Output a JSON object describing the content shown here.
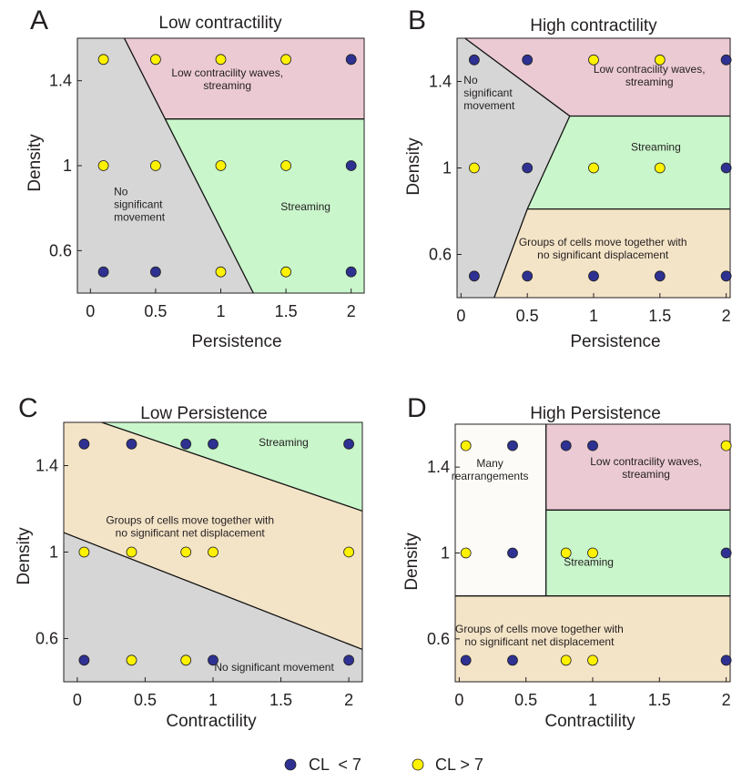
{
  "colors": {
    "cl_below": "#2e3192",
    "cl_above": "#fff200",
    "region_pink": "#ebcad3",
    "region_green": "#c9f6cb",
    "region_gray": "#d6d6d6",
    "region_tan": "#f4e4c7",
    "region_white": "#fcfbf7"
  },
  "legend": {
    "placement": "bottom-center",
    "items": [
      {
        "label": "CL  < 7",
        "class": "below"
      },
      {
        "label": "CL > 7",
        "class": "above"
      }
    ]
  },
  "chart_data": [
    {
      "panel": "A",
      "type": "scatter",
      "title": "Low contractility",
      "xlabel": "Persistence",
      "ylabel": "Density",
      "xlim": [
        -0.1,
        2.1
      ],
      "ylim": [
        0.4,
        1.6
      ],
      "xticks": [
        0,
        0.5,
        1,
        1.5,
        2
      ],
      "xtick_labels": [
        "0",
        "0.5",
        "1",
        "1.5",
        "2"
      ],
      "yticks": [
        0.6,
        1,
        1.4
      ],
      "ytick_labels": [
        "0.6",
        "1",
        "1.4"
      ],
      "regions": [
        {
          "color": "region_gray",
          "label": "No significant movement",
          "label_lines": [
            "No",
            "significant",
            "movement"
          ],
          "label_at": [
            0.18,
            0.86
          ],
          "label_anchor": "start",
          "polygon": [
            [
              -0.1,
              1.6
            ],
            [
              0.26,
              1.6
            ],
            [
              1.25,
              0.4
            ],
            [
              -0.1,
              0.4
            ]
          ]
        },
        {
          "color": "region_pink",
          "label": "Low contracility waves, streaming",
          "label_lines": [
            "Low contracility waves,",
            "streaming"
          ],
          "label_at": [
            1.05,
            1.42
          ],
          "label_anchor": "middle",
          "polygon": [
            [
              0.26,
              1.6
            ],
            [
              2.1,
              1.6
            ],
            [
              2.1,
              1.22
            ],
            [
              0.575,
              1.22
            ]
          ]
        },
        {
          "color": "region_green",
          "label": "Streaming",
          "label_lines": [
            "Streaming"
          ],
          "label_at": [
            1.65,
            0.79
          ],
          "label_anchor": "middle",
          "polygon": [
            [
              0.575,
              1.22
            ],
            [
              2.1,
              1.22
            ],
            [
              2.1,
              0.4
            ],
            [
              1.25,
              0.4
            ]
          ]
        }
      ],
      "boundaries": [
        [
          [
            0.26,
            1.6
          ],
          [
            1.25,
            0.4
          ]
        ],
        [
          [
            0.575,
            1.22
          ],
          [
            2.1,
            1.22
          ]
        ]
      ],
      "points": [
        {
          "x": 0.1,
          "y": 1.5,
          "class": "above"
        },
        {
          "x": 0.5,
          "y": 1.5,
          "class": "above"
        },
        {
          "x": 1,
          "y": 1.5,
          "class": "above"
        },
        {
          "x": 1.5,
          "y": 1.5,
          "class": "above"
        },
        {
          "x": 2,
          "y": 1.5,
          "class": "below"
        },
        {
          "x": 0.1,
          "y": 1.0,
          "class": "above"
        },
        {
          "x": 0.5,
          "y": 1.0,
          "class": "above"
        },
        {
          "x": 1,
          "y": 1.0,
          "class": "above"
        },
        {
          "x": 1.5,
          "y": 1.0,
          "class": "above"
        },
        {
          "x": 2,
          "y": 1.0,
          "class": "below"
        },
        {
          "x": 0.1,
          "y": 0.5,
          "class": "below"
        },
        {
          "x": 0.5,
          "y": 0.5,
          "class": "below"
        },
        {
          "x": 1,
          "y": 0.5,
          "class": "above"
        },
        {
          "x": 1.5,
          "y": 0.5,
          "class": "above"
        },
        {
          "x": 2,
          "y": 0.5,
          "class": "below"
        }
      ]
    },
    {
      "panel": "B",
      "type": "scatter",
      "title": "High contractility",
      "xlabel": "Persistence",
      "ylabel": "Density",
      "xlim": [
        -0.03,
        2.03
      ],
      "ylim": [
        0.4,
        1.6
      ],
      "xticks": [
        0,
        0.5,
        1,
        1.5,
        2
      ],
      "xtick_labels": [
        "0",
        "0.5",
        "1",
        "1.5",
        "2"
      ],
      "yticks": [
        0.6,
        1,
        1.4
      ],
      "ytick_labels": [
        "0.6",
        "1",
        "1.4"
      ],
      "regions": [
        {
          "color": "region_gray",
          "label": "No significant movement",
          "label_lines": [
            "No",
            "significant",
            "movement"
          ],
          "label_at": [
            0.02,
            1.39
          ],
          "label_anchor": "start",
          "polygon": [
            [
              -0.03,
              1.6
            ],
            [
              0.03,
              1.6
            ],
            [
              0.82,
              1.24
            ],
            [
              0.5,
              0.81
            ],
            [
              0.25,
              0.4
            ],
            [
              -0.03,
              0.4
            ]
          ]
        },
        {
          "color": "region_pink",
          "label": "Low contracility waves, streaming",
          "label_lines": [
            "Low contracility waves,",
            "streaming"
          ],
          "label_at": [
            1.42,
            1.44
          ],
          "label_anchor": "middle",
          "polygon": [
            [
              0.03,
              1.6
            ],
            [
              2.03,
              1.6
            ],
            [
              2.03,
              1.24
            ],
            [
              0.82,
              1.24
            ]
          ]
        },
        {
          "color": "region_green",
          "label": "Streaming",
          "label_lines": [
            "Streaming"
          ],
          "label_at": [
            1.47,
            1.08
          ],
          "label_anchor": "middle",
          "polygon": [
            [
              0.82,
              1.24
            ],
            [
              2.03,
              1.24
            ],
            [
              2.03,
              0.81
            ],
            [
              0.5,
              0.81
            ]
          ]
        },
        {
          "color": "region_tan",
          "label": "Groups of cells move together with no significant displacement",
          "label_lines": [
            "Groups of cells move together with",
            "no significant displacement"
          ],
          "label_at": [
            1.07,
            0.64
          ],
          "label_anchor": "middle",
          "polygon": [
            [
              0.5,
              0.81
            ],
            [
              2.03,
              0.81
            ],
            [
              2.03,
              0.4
            ],
            [
              0.25,
              0.4
            ]
          ]
        }
      ],
      "boundaries": [
        [
          [
            0.03,
            1.6
          ],
          [
            0.82,
            1.24
          ],
          [
            0.5,
            0.81
          ],
          [
            0.25,
            0.4
          ]
        ],
        [
          [
            0.82,
            1.24
          ],
          [
            2.03,
            1.24
          ]
        ],
        [
          [
            0.5,
            0.81
          ],
          [
            2.03,
            0.81
          ]
        ]
      ],
      "points": [
        {
          "x": 0.1,
          "y": 1.5,
          "class": "below"
        },
        {
          "x": 0.5,
          "y": 1.5,
          "class": "below"
        },
        {
          "x": 1,
          "y": 1.5,
          "class": "above"
        },
        {
          "x": 1.5,
          "y": 1.5,
          "class": "above"
        },
        {
          "x": 2,
          "y": 1.5,
          "class": "below"
        },
        {
          "x": 0.1,
          "y": 1.0,
          "class": "above"
        },
        {
          "x": 0.5,
          "y": 1.0,
          "class": "below"
        },
        {
          "x": 1,
          "y": 1.0,
          "class": "above"
        },
        {
          "x": 1.5,
          "y": 1.0,
          "class": "above"
        },
        {
          "x": 2,
          "y": 1.0,
          "class": "below"
        },
        {
          "x": 0.1,
          "y": 0.5,
          "class": "below"
        },
        {
          "x": 0.5,
          "y": 0.5,
          "class": "below"
        },
        {
          "x": 1,
          "y": 0.5,
          "class": "below"
        },
        {
          "x": 1.5,
          "y": 0.5,
          "class": "below"
        },
        {
          "x": 2,
          "y": 0.5,
          "class": "below"
        }
      ]
    },
    {
      "panel": "C",
      "type": "scatter",
      "title": "Low Persistence",
      "xlabel": "Contractility",
      "ylabel": "Density",
      "xlim": [
        -0.1,
        2.1
      ],
      "ylim": [
        0.4,
        1.6
      ],
      "xticks": [
        0,
        0.5,
        1,
        1.5,
        2
      ],
      "xtick_labels": [
        "0",
        "0.5",
        "1",
        "1.5",
        "2"
      ],
      "yticks": [
        0.6,
        1,
        1.4
      ],
      "ytick_labels": [
        "0.6",
        "1",
        "1.4"
      ],
      "regions": [
        {
          "color": "region_tan",
          "label": "Groups of cells move together with no significant net displacement",
          "label_lines": [
            "Groups of cells move together with",
            "no significant net displacement"
          ],
          "label_at": [
            0.83,
            1.13
          ],
          "label_anchor": "middle",
          "polygon": [
            [
              -0.1,
              1.6
            ],
            [
              0.18,
              1.6
            ],
            [
              2.1,
              1.19
            ],
            [
              2.1,
              0.55
            ],
            [
              -0.1,
              1.09
            ]
          ]
        },
        {
          "color": "region_green",
          "label": "Streaming",
          "label_lines": [
            "Streaming"
          ],
          "label_at": [
            1.52,
            1.49
          ],
          "label_anchor": "middle",
          "polygon": [
            [
              0.18,
              1.6
            ],
            [
              2.1,
              1.6
            ],
            [
              2.1,
              1.19
            ]
          ]
        },
        {
          "color": "region_gray",
          "label": "No significant movement",
          "label_lines": [
            "No significant movement"
          ],
          "label_at": [
            1.45,
            0.45
          ],
          "label_anchor": "middle",
          "polygon": [
            [
              -0.1,
              1.09
            ],
            [
              2.1,
              0.55
            ],
            [
              2.1,
              0.4
            ],
            [
              -0.1,
              0.4
            ]
          ]
        }
      ],
      "boundaries": [
        [
          [
            0.18,
            1.6
          ],
          [
            2.1,
            1.19
          ]
        ],
        [
          [
            -0.1,
            1.09
          ],
          [
            2.1,
            0.55
          ]
        ]
      ],
      "points": [
        {
          "x": 0.05,
          "y": 1.5,
          "class": "below"
        },
        {
          "x": 0.4,
          "y": 1.5,
          "class": "below"
        },
        {
          "x": 0.8,
          "y": 1.5,
          "class": "below"
        },
        {
          "x": 1,
          "y": 1.5,
          "class": "below"
        },
        {
          "x": 2,
          "y": 1.5,
          "class": "below"
        },
        {
          "x": 0.05,
          "y": 1.0,
          "class": "above"
        },
        {
          "x": 0.4,
          "y": 1.0,
          "class": "above"
        },
        {
          "x": 0.8,
          "y": 1.0,
          "class": "above"
        },
        {
          "x": 1,
          "y": 1.0,
          "class": "above"
        },
        {
          "x": 2,
          "y": 1.0,
          "class": "above"
        },
        {
          "x": 0.05,
          "y": 0.5,
          "class": "below"
        },
        {
          "x": 0.4,
          "y": 0.5,
          "class": "above"
        },
        {
          "x": 0.8,
          "y": 0.5,
          "class": "above"
        },
        {
          "x": 1,
          "y": 0.5,
          "class": "below"
        },
        {
          "x": 2,
          "y": 0.5,
          "class": "below"
        }
      ]
    },
    {
      "panel": "D",
      "type": "scatter",
      "title": "High Persistence",
      "xlabel": "Contractility",
      "ylabel": "Density",
      "xlim": [
        -0.03,
        2.03
      ],
      "ylim": [
        0.4,
        1.6
      ],
      "xticks": [
        0,
        0.5,
        1,
        1.5,
        2
      ],
      "xtick_labels": [
        "0",
        "0.5",
        "1",
        "1.5",
        "2"
      ],
      "yticks": [
        0.6,
        1,
        1.4
      ],
      "ytick_labels": [
        "0.6",
        "1",
        "1.4"
      ],
      "regions": [
        {
          "color": "region_white",
          "label": "Many rearrangements",
          "label_lines": [
            "Many",
            "rearrangements"
          ],
          "label_at": [
            0.23,
            1.4
          ],
          "label_anchor": "middle",
          "polygon": [
            [
              -0.03,
              1.6
            ],
            [
              0.65,
              1.6
            ],
            [
              0.65,
              0.8
            ],
            [
              -0.03,
              0.8
            ]
          ]
        },
        {
          "color": "region_pink",
          "label": "Low contracility waves, streaming",
          "label_lines": [
            "Low contracility waves,",
            "streaming"
          ],
          "label_at": [
            1.4,
            1.41
          ],
          "label_anchor": "middle",
          "polygon": [
            [
              0.65,
              1.6
            ],
            [
              2.03,
              1.6
            ],
            [
              2.03,
              1.2
            ],
            [
              0.65,
              1.2
            ]
          ]
        },
        {
          "color": "region_green",
          "label": "Streaming",
          "label_lines": [
            "Streaming"
          ],
          "label_at": [
            0.97,
            0.94
          ],
          "label_anchor": "middle",
          "polygon": [
            [
              0.65,
              1.2
            ],
            [
              2.03,
              1.2
            ],
            [
              2.03,
              0.8
            ],
            [
              0.65,
              0.8
            ]
          ]
        },
        {
          "color": "region_tan",
          "label": "Groups of cells move together with no significant net displacement",
          "label_lines": [
            "Groups of cells move together with",
            "no significant net displacement"
          ],
          "label_at": [
            0.6,
            0.63
          ],
          "label_anchor": "middle",
          "polygon": [
            [
              -0.03,
              0.8
            ],
            [
              2.03,
              0.8
            ],
            [
              2.03,
              0.4
            ],
            [
              -0.03,
              0.4
            ]
          ]
        }
      ],
      "boundaries": [
        [
          [
            0.65,
            1.6
          ],
          [
            0.65,
            0.8
          ]
        ],
        [
          [
            0.65,
            1.2
          ],
          [
            2.03,
            1.2
          ]
        ],
        [
          [
            -0.03,
            0.8
          ],
          [
            2.03,
            0.8
          ]
        ]
      ],
      "points": [
        {
          "x": 0.05,
          "y": 1.5,
          "class": "above"
        },
        {
          "x": 0.4,
          "y": 1.5,
          "class": "below"
        },
        {
          "x": 0.8,
          "y": 1.5,
          "class": "below"
        },
        {
          "x": 1,
          "y": 1.5,
          "class": "below"
        },
        {
          "x": 2,
          "y": 1.5,
          "class": "above"
        },
        {
          "x": 0.05,
          "y": 1.0,
          "class": "above"
        },
        {
          "x": 0.4,
          "y": 1.0,
          "class": "below"
        },
        {
          "x": 0.8,
          "y": 1.0,
          "class": "above"
        },
        {
          "x": 1,
          "y": 1.0,
          "class": "above"
        },
        {
          "x": 2,
          "y": 1.0,
          "class": "below"
        },
        {
          "x": 0.05,
          "y": 0.5,
          "class": "below"
        },
        {
          "x": 0.4,
          "y": 0.5,
          "class": "below"
        },
        {
          "x": 0.8,
          "y": 0.5,
          "class": "above"
        },
        {
          "x": 1,
          "y": 0.5,
          "class": "above"
        },
        {
          "x": 2,
          "y": 0.5,
          "class": "below"
        }
      ]
    }
  ]
}
